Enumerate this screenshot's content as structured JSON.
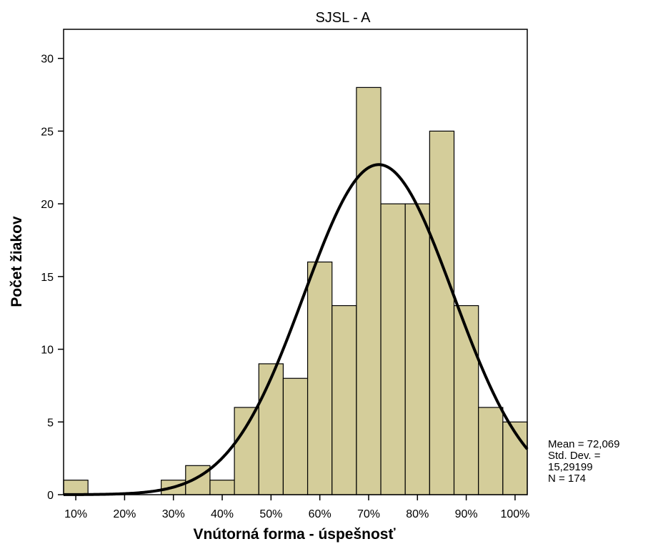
{
  "chart_data": {
    "type": "bar",
    "title": "SJSL - A",
    "xlabel": "Vnútorná forma - úspešnosť",
    "ylabel": "Počet žiakov",
    "bin_width": 5,
    "bins": [
      {
        "start": 7.5,
        "value": 1
      },
      {
        "start": 12.5,
        "value": 0
      },
      {
        "start": 17.5,
        "value": 0
      },
      {
        "start": 22.5,
        "value": 0
      },
      {
        "start": 27.5,
        "value": 1
      },
      {
        "start": 32.5,
        "value": 2
      },
      {
        "start": 37.5,
        "value": 1
      },
      {
        "start": 42.5,
        "value": 6
      },
      {
        "start": 47.5,
        "value": 9
      },
      {
        "start": 52.5,
        "value": 8
      },
      {
        "start": 57.5,
        "value": 16
      },
      {
        "start": 62.5,
        "value": 13
      },
      {
        "start": 67.5,
        "value": 28
      },
      {
        "start": 72.5,
        "value": 20
      },
      {
        "start": 77.5,
        "value": 20
      },
      {
        "start": 82.5,
        "value": 25
      },
      {
        "start": 87.5,
        "value": 13
      },
      {
        "start": 92.5,
        "value": 6
      },
      {
        "start": 97.5,
        "value": 5
      }
    ],
    "xlim": [
      7.5,
      102.5
    ],
    "ylim": [
      0,
      32
    ],
    "x_ticks": [
      10,
      20,
      30,
      40,
      50,
      60,
      70,
      80,
      90,
      100
    ],
    "x_tick_labels": [
      "10%",
      "20%",
      "30%",
      "40%",
      "50%",
      "60%",
      "70%",
      "80%",
      "90%",
      "100%"
    ],
    "y_ticks": [
      0,
      5,
      10,
      15,
      20,
      25,
      30
    ],
    "y_tick_labels": [
      "0",
      "5",
      "10",
      "15",
      "20",
      "25",
      "30"
    ],
    "normal_curve": {
      "mean": 72.069,
      "sd": 15.29199,
      "n": 174
    },
    "bar_color": "#d4cd9a",
    "curve_color": "#000000",
    "grid": false,
    "stats": {
      "mean": "Mean = 72,069",
      "sd_label": "Std. Dev. =",
      "sd_value": "15,29199",
      "n": "N = 174"
    }
  }
}
